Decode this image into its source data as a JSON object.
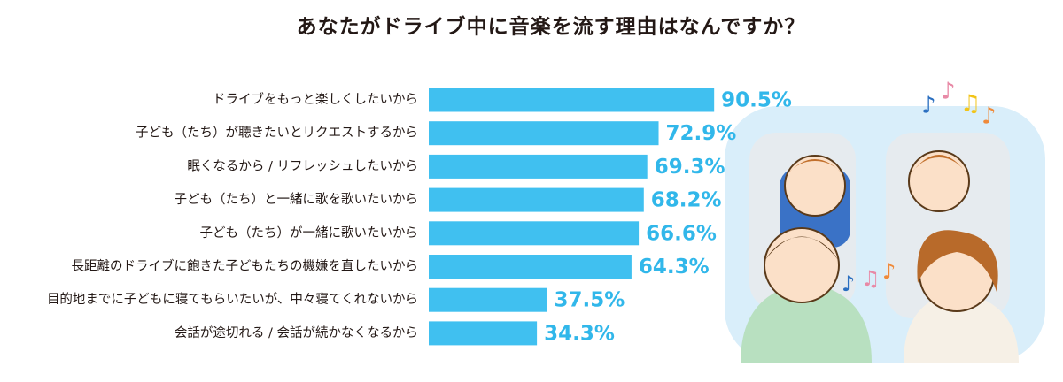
{
  "chart_data": {
    "type": "bar",
    "orientation": "horizontal",
    "title": "あなたがドライブ中に音楽を流す理由はなんですか？",
    "categories": [
      "ドライブをもっと楽しくしたいから",
      "子ども（たち）が聴きたいとリクエストするから",
      "眠くなるから / リフレッシュしたいから",
      "子ども（たち）と一緒に歌を歌いたいから",
      "子ども（たち）が一緒に歌いたいから",
      "長距離のドライブに飽きた子どもたちの機嫌を直したいから",
      "目的地までに子どもに寝てもらいたいが、中々寝てくれないから",
      "会話が途切れる / 会話が続かなくなるから"
    ],
    "values": [
      90.5,
      72.9,
      69.3,
      68.2,
      66.6,
      64.3,
      37.5,
      34.3
    ],
    "value_labels": [
      "90.5%",
      "72.9%",
      "69.3%",
      "68.2%",
      "66.6%",
      "64.3%",
      "37.5%",
      "34.3%"
    ],
    "color": "#40c0f0"
  }
}
